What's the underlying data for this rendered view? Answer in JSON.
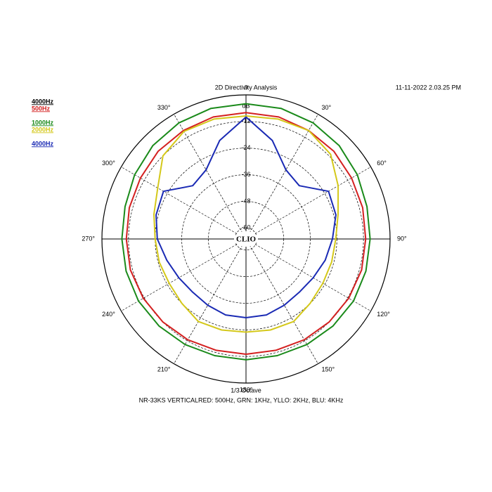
{
  "chart_data": {
    "type": "polar",
    "title": "2D Directivity Analysis",
    "timestamp": "11-11-2022 2.03.25 PM",
    "subtitle": "1/3 Octave",
    "caption": "NR-33KS VERTICALRED: 500Hz, GRN: 1KHz, YLLO: 2KHz, BLU: 4KHz",
    "logo": "CLIO",
    "r_label": "dB",
    "legend_header": "4000Hz",
    "rlim": [
      -65,
      0
    ],
    "rticks": [
      -60,
      -48,
      -36,
      -24,
      -12
    ],
    "thetaticks": [
      0,
      {
        "value": 30,
        "label": "30°"
      },
      {
        "value": 60,
        "label": "60°"
      },
      {
        "value": 90,
        "label": "90°"
      },
      {
        "value": 120,
        "label": "120°"
      },
      {
        "value": 150,
        "label": "150°"
      },
      {
        "value": 180,
        "label": "180°"
      },
      {
        "value": 210,
        "label": "210°"
      },
      {
        "value": 240,
        "label": "240°"
      },
      {
        "value": 270,
        "label": "270°"
      },
      {
        "value": 300,
        "label": "300°"
      },
      {
        "value": 330,
        "label": "330°"
      }
    ],
    "theta": [
      0,
      15,
      30,
      45,
      60,
      75,
      90,
      105,
      120,
      135,
      150,
      165,
      180,
      195,
      210,
      225,
      240,
      255,
      270,
      285,
      300,
      315,
      330,
      345
    ],
    "series": [
      {
        "name": "500Hz",
        "color": "#d42020",
        "values": [
          -8,
          -8,
          -8.5,
          -9,
          -10,
          -10.5,
          -11,
          -11,
          -11.5,
          -12,
          -12.5,
          -13,
          -13,
          -13,
          -12.5,
          -12,
          -11.5,
          -11,
          -11,
          -10.5,
          -10,
          -9,
          -8.5,
          -8
        ]
      },
      {
        "name": "1000Hz",
        "color": "#1a8a1a",
        "values": [
          -4,
          -4,
          -4.5,
          -5.5,
          -7,
          -8.5,
          -9,
          -9,
          -9,
          -9.5,
          -10,
          -10.5,
          -10.5,
          -10.5,
          -10,
          -9.5,
          -9,
          -9,
          -9,
          -8.5,
          -7,
          -5.5,
          -4.5,
          -4
        ]
      },
      {
        "name": "2000Hz",
        "color": "#d4c81a",
        "values": [
          -9.5,
          -9,
          -8.5,
          -11,
          -17,
          -22,
          -24.5,
          -25,
          -25,
          -24,
          -22,
          -22.5,
          -23,
          -22.5,
          -22,
          -24,
          -25,
          -24.5,
          -24,
          -22,
          -19,
          -12,
          -9,
          -9
        ]
      },
      {
        "name": "4000Hz",
        "color": "#1a2ab4",
        "values": [
          -10,
          -19,
          -29,
          -31,
          -22,
          -23,
          -26,
          -28,
          -30,
          -31,
          -30.5,
          -29.5,
          -29.5,
          -29.5,
          -30.5,
          -31,
          -30,
          -28,
          -25,
          -23,
          -22,
          -31,
          -29,
          -19
        ]
      }
    ]
  }
}
